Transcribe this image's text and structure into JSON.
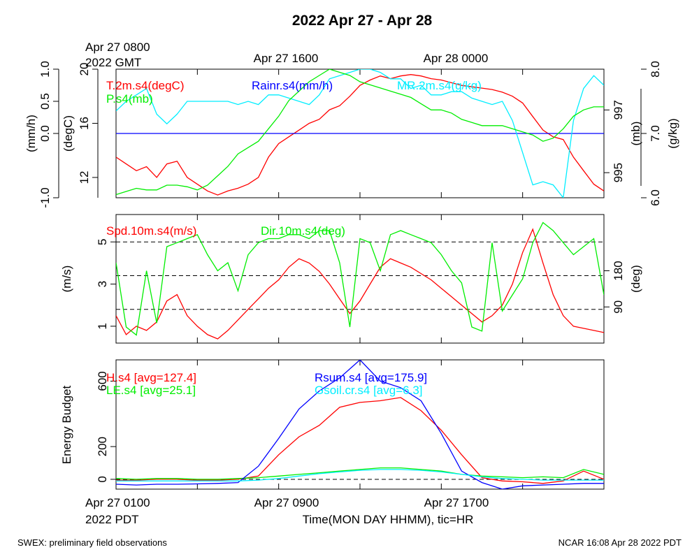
{
  "title": "2022 Apr 27 - Apr 28",
  "footer": {
    "left": "SWEX: preliminary field observations",
    "right": "NCAR 16:08 Apr 28 2022 PDT"
  },
  "top_axis": {
    "labels": [
      "Apr 27 0800",
      "Apr 27 1600",
      "Apr 28 0000"
    ],
    "sublabel": "2022 GMT"
  },
  "bottom_axis": {
    "labels": [
      "Apr 27 0100",
      "Apr 27 0900",
      "Apr 27 1700"
    ],
    "sublabel": "2022 PDT",
    "xlabel": "Time(MON DAY HHMM), tic=HR"
  },
  "colors": {
    "red": "#ff0000",
    "green": "#00ee00",
    "blue": "#0000ff",
    "cyan": "#00eeff"
  },
  "chart_data": [
    {
      "type": "line",
      "x_unit": "hours since Apr 27 0100 PDT",
      "xlim": [
        0,
        24
      ],
      "axes": {
        "rain": {
          "label": "(mm/h)",
          "ylim": [
            -1.0,
            1.0
          ],
          "ticks": [
            "-1.0",
            "0.0",
            "0.5",
            "1.0"
          ]
        },
        "temp": {
          "label": "(degC)",
          "ylim": [
            10.5,
            20.0
          ],
          "ticks": [
            "12",
            "16",
            "20"
          ]
        },
        "pres": {
          "label": "(mb)",
          "ylim": [
            994.2,
            998.3
          ],
          "ticks": [
            "995",
            "997"
          ]
        },
        "mr": {
          "label": "(g/kg)",
          "ylim": [
            6.0,
            8.0
          ],
          "ticks": [
            "6.0",
            "7.0",
            "8.0"
          ]
        }
      },
      "series": [
        {
          "name": "T.2m.s4(degC)",
          "axis": "temp",
          "color": "red",
          "x": [
            0,
            0.5,
            1,
            1.5,
            2,
            2.5,
            3,
            3.5,
            4,
            4.5,
            5,
            5.5,
            6,
            6.5,
            7,
            7.5,
            8,
            8.5,
            9,
            9.5,
            10,
            10.5,
            11,
            11.5,
            12,
            12.5,
            13,
            13.5,
            14,
            14.5,
            15,
            15.5,
            16,
            16.5,
            17,
            17.5,
            18,
            18.5,
            19,
            19.5,
            20,
            20.5,
            21,
            21.5,
            22,
            22.5,
            23,
            23.5,
            24
          ],
          "values": [
            13.5,
            13,
            12.5,
            12.8,
            12,
            13,
            13.2,
            12,
            11.5,
            11,
            10.7,
            11,
            11.2,
            11.5,
            12,
            13.5,
            14.5,
            15,
            15.5,
            16,
            16.3,
            17,
            17.3,
            18,
            18.8,
            19.2,
            19.5,
            19.3,
            19.5,
            19.6,
            19.5,
            19.3,
            19.2,
            19,
            18.8,
            18.7,
            18.6,
            18.5,
            18.3,
            18,
            17.5,
            16.5,
            15.5,
            15,
            14.8,
            13.5,
            12.5,
            11.5,
            11
          ]
        },
        {
          "name": "Rainr.s4(mm/h)",
          "axis": "rain",
          "color": "blue",
          "x": [
            0,
            24
          ],
          "values": [
            0,
            0
          ]
        },
        {
          "name": "MR.2m.s4(g/kg)",
          "axis": "mr",
          "color": "cyan",
          "x": [
            0,
            0.5,
            1,
            1.5,
            2,
            2.5,
            3,
            3.5,
            4,
            4.5,
            5,
            5.5,
            6,
            6.5,
            7,
            7.5,
            8,
            8.5,
            9,
            9.5,
            10,
            10.5,
            11,
            11.5,
            12,
            12.5,
            13,
            13.5,
            14,
            14.5,
            15,
            15.5,
            16,
            16.5,
            17,
            17.5,
            18,
            18.5,
            19,
            19.5,
            20,
            20.5,
            21,
            21.5,
            22,
            22.5,
            23,
            23.5,
            24
          ],
          "values": [
            7.35,
            7.5,
            7.6,
            7.7,
            7.3,
            7.15,
            7.3,
            7.5,
            7.5,
            7.5,
            7.5,
            7.5,
            7.45,
            7.5,
            7.45,
            7.6,
            7.6,
            7.55,
            7.5,
            7.45,
            7.6,
            7.85,
            7.9,
            7.95,
            8.0,
            8.0,
            7.95,
            7.85,
            7.85,
            7.7,
            7.75,
            7.6,
            7.6,
            7.65,
            7.65,
            7.55,
            7.5,
            7.45,
            7.5,
            7.2,
            6.7,
            6.2,
            6.25,
            6.2,
            6.0,
            7.2,
            7.7,
            7.9,
            7.75
          ]
        },
        {
          "name": "P.s4(mb)",
          "axis": "pres",
          "color": "green",
          "x": [
            0,
            0.5,
            1,
            1.5,
            2,
            2.5,
            3,
            3.5,
            4,
            4.5,
            5,
            5.5,
            6,
            6.5,
            7,
            7.5,
            8,
            8.5,
            9,
            9.5,
            10,
            10.5,
            11,
            11.5,
            12,
            12.5,
            13,
            13.5,
            14,
            14.5,
            15,
            15.5,
            16,
            16.5,
            17,
            17.5,
            18,
            18.5,
            19,
            19.5,
            20,
            20.5,
            21,
            21.5,
            22,
            22.5,
            23,
            23.5,
            24
          ],
          "values": [
            994.3,
            994.4,
            994.5,
            994.45,
            994.45,
            994.6,
            994.6,
            994.55,
            994.45,
            994.6,
            994.9,
            995.2,
            995.6,
            995.8,
            996.0,
            996.4,
            996.8,
            997.3,
            997.6,
            997.9,
            998.1,
            998.3,
            998.2,
            998.1,
            997.9,
            997.8,
            997.7,
            997.6,
            997.5,
            997.4,
            997.2,
            997.0,
            997.0,
            996.9,
            996.7,
            996.6,
            996.5,
            996.5,
            996.5,
            996.4,
            996.3,
            996.2,
            996.0,
            996.1,
            996.4,
            996.8,
            997.0,
            997.1,
            997.1
          ]
        }
      ],
      "legend": [
        "T.2m.s4(degC)",
        "Rainr.s4(mm/h)",
        "MR.2m.s4(g/kg)",
        "P.s4(mb)"
      ]
    },
    {
      "type": "line",
      "x_unit": "hours since Apr 27 0100 PDT",
      "xlim": [
        0,
        24
      ],
      "axes": {
        "spd": {
          "label": "(m/s)",
          "ylim": [
            0.2,
            6.3
          ],
          "ticks": [
            "1",
            "3",
            "5"
          ]
        },
        "dir": {
          "label": "(deg)",
          "ylim": [
            0,
            320
          ],
          "ticks": [
            "90",
            "180"
          ]
        }
      },
      "reference_lines_spd": [
        1.8,
        3.4,
        5.0
      ],
      "series": [
        {
          "name": "Spd.10m.s4(m/s)",
          "axis": "spd",
          "color": "red",
          "x": [
            0,
            0.5,
            1,
            1.5,
            2,
            2.5,
            3,
            3.5,
            4,
            4.5,
            5,
            5.5,
            6,
            6.5,
            7,
            7.5,
            8,
            8.5,
            9,
            9.5,
            10,
            10.5,
            11,
            11.5,
            12,
            12.5,
            13,
            13.5,
            14,
            14.5,
            15,
            15.5,
            16,
            16.5,
            17,
            17.5,
            18,
            18.5,
            19,
            19.5,
            20,
            20.5,
            21,
            21.5,
            22,
            22.5,
            23,
            23.5,
            24
          ],
          "values": [
            1.5,
            0.6,
            1.0,
            0.8,
            1.2,
            2.2,
            2.5,
            1.5,
            1.0,
            0.6,
            0.4,
            0.8,
            1.3,
            1.8,
            2.3,
            2.8,
            3.2,
            3.8,
            4.2,
            4.0,
            3.6,
            3.0,
            2.3,
            1.6,
            2.2,
            3.0,
            3.8,
            4.2,
            4.0,
            3.8,
            3.5,
            3.2,
            2.8,
            2.4,
            2.0,
            1.6,
            1.2,
            1.5,
            2.0,
            3.0,
            4.5,
            5.6,
            4.0,
            2.5,
            1.5,
            1.0,
            0.9,
            0.8,
            0.7
          ]
        },
        {
          "name": "Dir.10m.s4(deg)",
          "axis": "dir",
          "color": "green",
          "x": [
            0,
            0.5,
            1,
            1.5,
            2,
            2.5,
            3,
            3.5,
            4,
            4.5,
            5,
            5.5,
            6,
            6.5,
            7,
            7.5,
            8,
            8.5,
            9,
            9.5,
            10,
            10.5,
            11,
            11.5,
            12,
            12.5,
            13,
            13.5,
            14,
            14.5,
            15,
            15.5,
            16,
            16.5,
            17,
            17.5,
            18,
            18.5,
            19,
            19.5,
            20,
            20.5,
            21,
            21.5,
            22,
            22.5,
            23,
            23.5,
            24
          ],
          "values": [
            200,
            40,
            20,
            180,
            50,
            240,
            250,
            260,
            270,
            220,
            180,
            200,
            130,
            220,
            250,
            260,
            260,
            270,
            270,
            260,
            280,
            280,
            200,
            40,
            260,
            250,
            180,
            270,
            280,
            270,
            260,
            250,
            220,
            180,
            150,
            40,
            30,
            250,
            80,
            120,
            160,
            250,
            300,
            280,
            250,
            220,
            240,
            260,
            120
          ]
        }
      ],
      "legend": [
        "Spd.10m.s4(m/s)",
        "Dir.10m.s4(deg)"
      ]
    },
    {
      "type": "line",
      "x_unit": "hours since Apr 27 0100 PDT",
      "xlim": [
        0,
        24
      ],
      "ylabel": "Energy Budget",
      "ylim": [
        -60,
        730
      ],
      "yticks": [
        "0",
        "200",
        "600"
      ],
      "series": [
        {
          "name": "H.s4 [avg=127.4]",
          "color": "red",
          "x": [
            0,
            1,
            2,
            3,
            4,
            5,
            6,
            7,
            8,
            9,
            10,
            11,
            12,
            13,
            14,
            15,
            16,
            17,
            18,
            19,
            20,
            21,
            22,
            23,
            24
          ],
          "values": [
            -5,
            -5,
            0,
            0,
            -5,
            -5,
            0,
            20,
            150,
            260,
            330,
            440,
            470,
            480,
            500,
            420,
            300,
            150,
            10,
            -10,
            -15,
            -25,
            -10,
            50,
            0
          ]
        },
        {
          "name": "LE.s4 [avg=25.1]",
          "color": "green",
          "x": [
            0,
            1,
            2,
            3,
            4,
            5,
            6,
            7,
            8,
            9,
            10,
            11,
            12,
            13,
            14,
            15,
            16,
            17,
            18,
            19,
            20,
            21,
            22,
            23,
            24
          ],
          "values": [
            5,
            0,
            5,
            5,
            0,
            0,
            5,
            10,
            20,
            30,
            40,
            50,
            60,
            70,
            70,
            60,
            50,
            30,
            20,
            15,
            10,
            15,
            10,
            60,
            30
          ]
        },
        {
          "name": "Rsum.s4 [avg=175.9]",
          "color": "blue",
          "x": [
            0,
            1,
            2,
            3,
            4,
            5,
            6,
            7,
            8,
            9,
            10,
            11,
            12,
            13,
            14,
            15,
            16,
            17,
            18,
            19,
            20,
            21,
            22,
            23,
            24
          ],
          "values": [
            -30,
            -35,
            -30,
            -30,
            -28,
            -25,
            -20,
            80,
            250,
            430,
            540,
            620,
            730,
            600,
            560,
            480,
            280,
            50,
            -20,
            -60,
            -40,
            -35,
            -30,
            -25,
            -25
          ]
        },
        {
          "name": "Gsoil.cr.s4 [avg=6.3]",
          "color": "cyan",
          "x": [
            0,
            1,
            2,
            3,
            4,
            5,
            6,
            7,
            8,
            9,
            10,
            11,
            12,
            13,
            14,
            15,
            16,
            17,
            18,
            19,
            20,
            21,
            22,
            23,
            24
          ],
          "values": [
            -10,
            -10,
            -10,
            -10,
            -10,
            -10,
            -10,
            -5,
            5,
            20,
            35,
            45,
            55,
            60,
            60,
            55,
            45,
            30,
            15,
            5,
            0,
            -5,
            -5,
            -5,
            -5
          ]
        }
      ],
      "legend": [
        "H.s4 [avg=127.4]",
        "LE.s4 [avg=25.1]",
        "Rsum.s4 [avg=175.9]",
        "Gsoil.cr.s4 [avg=6.3]"
      ]
    }
  ]
}
